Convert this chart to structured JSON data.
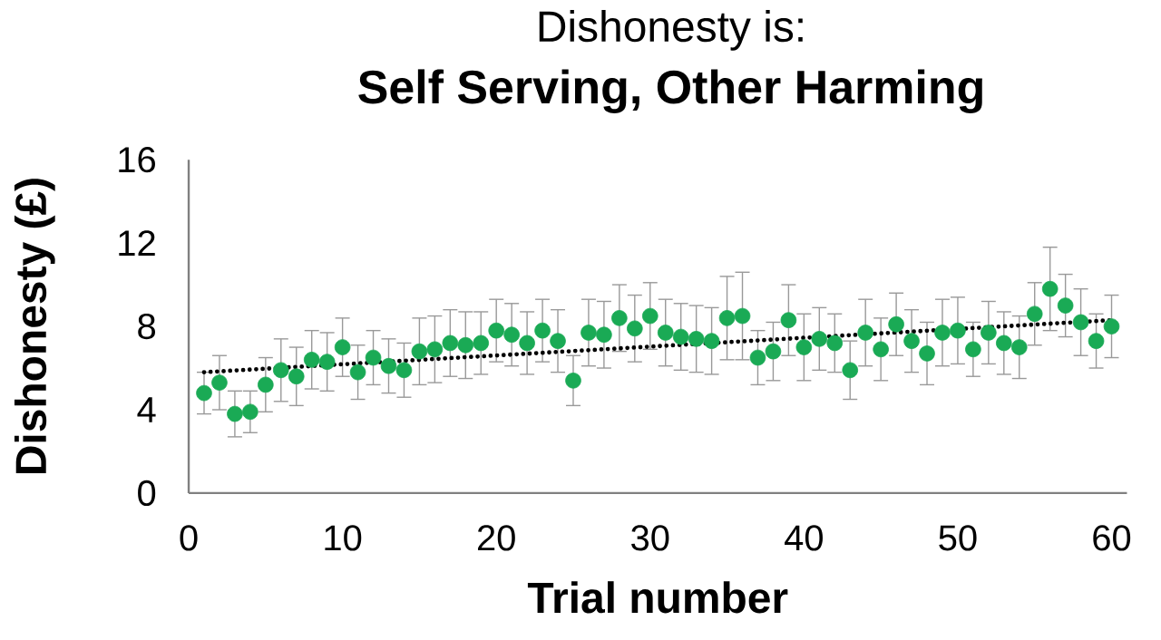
{
  "chart_data": {
    "type": "scatter",
    "title": "Dishonesty is:",
    "subtitle": "Self Serving, Other Harming",
    "xlabel": "Trial number",
    "ylabel": "Dishonesty (£)",
    "xlim": [
      0,
      61
    ],
    "xticks": [
      0,
      10,
      20,
      30,
      40,
      50,
      60
    ],
    "ylim": [
      0,
      16
    ],
    "yticks": [
      0,
      4,
      8,
      12,
      16
    ],
    "grid": false,
    "series": [
      {
        "type": "scatter",
        "color": "#1aaa55",
        "marker": "circle",
        "x": [
          1,
          2,
          3,
          4,
          5,
          6,
          7,
          8,
          9,
          10,
          11,
          12,
          13,
          14,
          15,
          16,
          17,
          18,
          19,
          20,
          21,
          22,
          23,
          24,
          25,
          26,
          27,
          28,
          29,
          30,
          31,
          32,
          33,
          34,
          35,
          36,
          37,
          38,
          39,
          40,
          41,
          42,
          43,
          44,
          45,
          46,
          47,
          48,
          49,
          50,
          51,
          52,
          53,
          54,
          55,
          56,
          57,
          58,
          59,
          60
        ],
        "values": [
          4.8,
          5.3,
          3.8,
          3.9,
          5.2,
          5.9,
          5.6,
          6.4,
          6.3,
          7.0,
          5.8,
          6.5,
          6.1,
          5.9,
          6.8,
          6.9,
          7.2,
          7.1,
          7.2,
          7.8,
          7.6,
          7.2,
          7.8,
          7.3,
          5.4,
          7.7,
          7.6,
          8.4,
          7.9,
          8.5,
          7.7,
          7.5,
          7.4,
          7.3,
          8.4,
          8.5,
          6.5,
          6.8,
          8.3,
          7.0,
          7.4,
          7.2,
          5.9,
          7.7,
          6.9,
          8.1,
          7.3,
          6.7,
          7.7,
          7.8,
          6.9,
          7.7,
          7.2,
          7.0,
          8.6,
          9.8,
          9.0,
          8.2,
          7.3,
          8.0
        ],
        "errors": [
          1.0,
          1.3,
          1.1,
          1.0,
          1.3,
          1.5,
          1.4,
          1.4,
          1.4,
          1.4,
          1.3,
          1.3,
          1.3,
          1.3,
          1.6,
          1.6,
          1.6,
          1.6,
          1.5,
          1.5,
          1.5,
          1.5,
          1.5,
          1.5,
          1.2,
          1.6,
          1.6,
          1.6,
          1.6,
          1.6,
          1.6,
          1.6,
          1.6,
          1.6,
          2.0,
          2.1,
          1.3,
          1.4,
          1.7,
          1.6,
          1.5,
          1.4,
          1.4,
          1.6,
          1.5,
          1.5,
          1.5,
          1.5,
          1.6,
          1.6,
          1.3,
          1.5,
          1.5,
          1.5,
          1.5,
          2.0,
          1.5,
          1.6,
          1.3,
          1.5
        ]
      },
      {
        "type": "line",
        "color": "#000000",
        "line_style": "dotted",
        "marker": "none",
        "x": [
          1,
          60
        ],
        "values": [
          5.8,
          8.3
        ]
      }
    ]
  }
}
